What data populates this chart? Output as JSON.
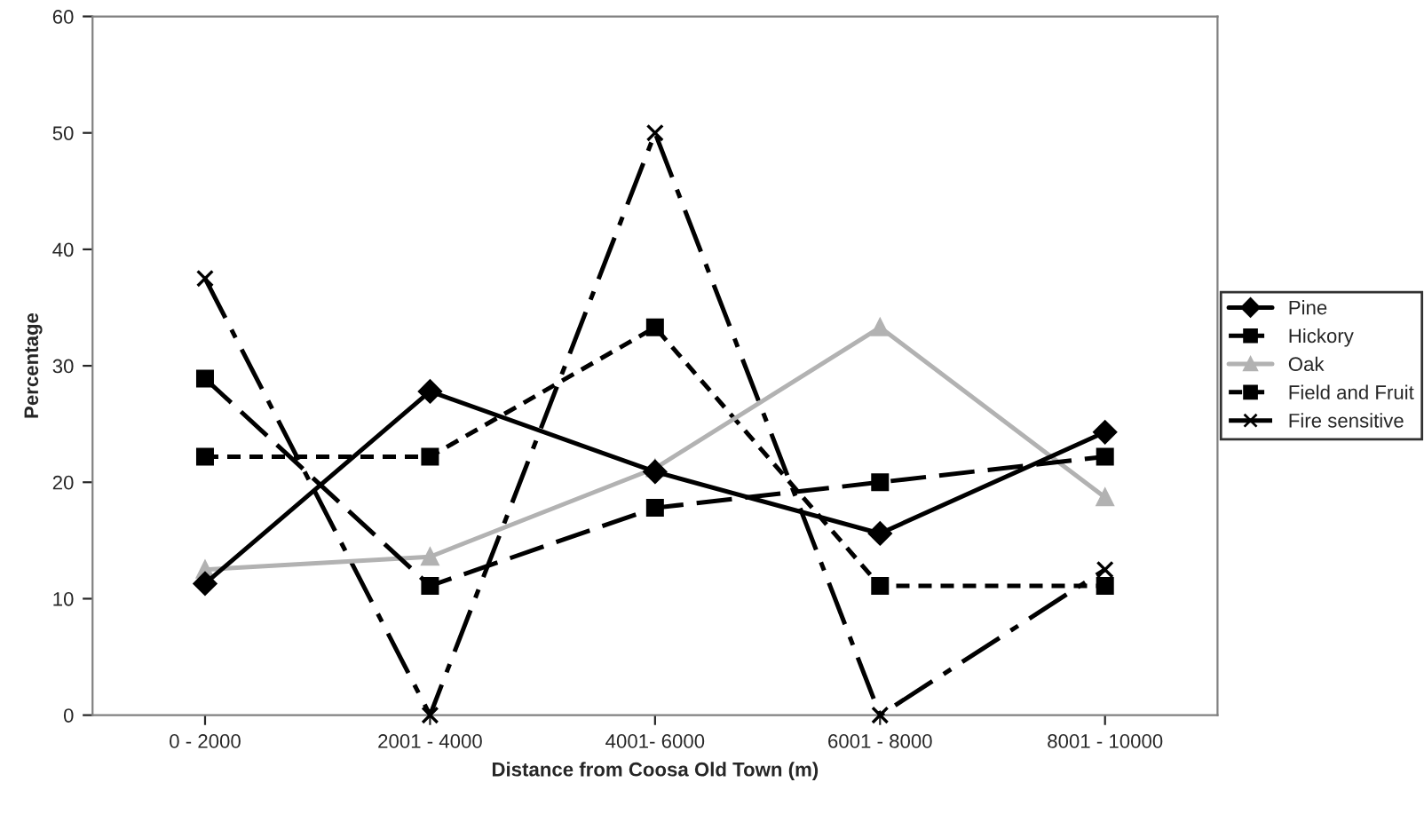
{
  "chart_data": {
    "type": "line",
    "xlabel": "Distance from Coosa Old Town (m)",
    "ylabel": "Percentage",
    "categories": [
      "0 - 2000",
      "2001 - 4000",
      "4001- 6000",
      "6001 - 8000",
      "8001 - 10000"
    ],
    "series": [
      {
        "name": "Pine",
        "color": "#000000",
        "values": [
          11.3,
          27.8,
          20.9,
          15.6,
          24.3
        ],
        "marker": "diamond",
        "line_style": "solid"
      },
      {
        "name": "Hickory",
        "color": "#000000",
        "values": [
          28.9,
          11.1,
          17.8,
          20.0,
          22.2
        ],
        "marker": "square",
        "line_style": "dashed"
      },
      {
        "name": "Oak",
        "color": "#b2b2b2",
        "values": [
          12.5,
          13.6,
          21.2,
          33.3,
          18.7
        ],
        "marker": "triangle",
        "line_style": "solid"
      },
      {
        "name": "Field and Fruit",
        "color": "#000000",
        "values": [
          22.2,
          22.2,
          33.3,
          11.1,
          11.1
        ],
        "marker": "square",
        "line_style": "dotted"
      },
      {
        "name": "Fire sensitive",
        "color": "#000000",
        "values": [
          37.5,
          0,
          50,
          0,
          12.5
        ],
        "marker": "cross",
        "line_style": "dashdot"
      }
    ],
    "ylim": [
      0,
      60
    ],
    "yticks": [
      0,
      10,
      20,
      30,
      40,
      50,
      60
    ],
    "grid": false,
    "legend": "right"
  }
}
